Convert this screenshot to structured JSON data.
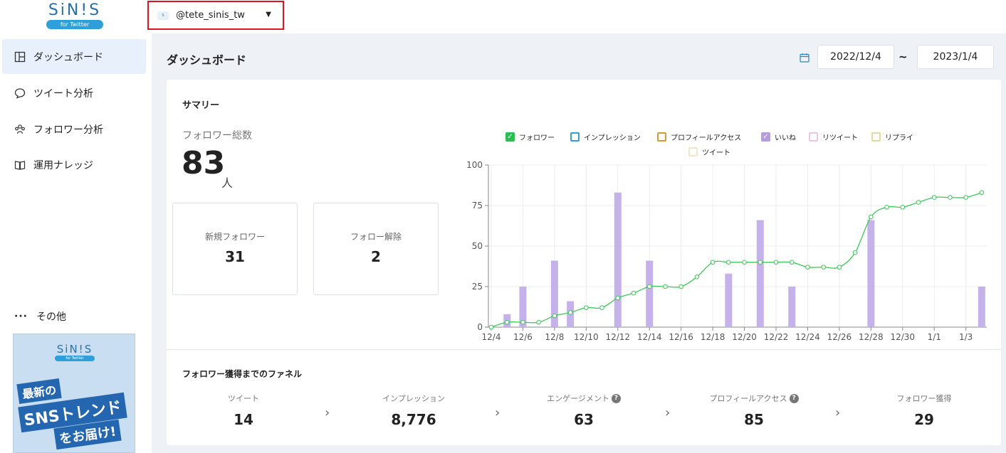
{
  "app": {
    "logo": "SiN!S",
    "logo_badge": "for Twitter"
  },
  "account": {
    "name": "@tete_sinis_tw"
  },
  "sidebar": {
    "items": [
      {
        "label": "ダッシュボード",
        "icon": "dashboard-icon",
        "active": true
      },
      {
        "label": "ツイート分析",
        "icon": "speech-bubble-icon",
        "active": false
      },
      {
        "label": "フォロワー分析",
        "icon": "users-icon",
        "active": false
      },
      {
        "label": "運用ナレッジ",
        "icon": "book-icon",
        "active": false
      }
    ],
    "other": "その他",
    "banner": {
      "logo": "SiN!S",
      "badge": "for Twitter",
      "line1": "最新の",
      "line2": "SNSトレンド",
      "line3": "をお届け!"
    }
  },
  "header": {
    "title": "ダッシュボード",
    "date_from": "2022/12/4",
    "separator": "~",
    "date_to": "2023/1/4"
  },
  "summary": {
    "title": "サマリー",
    "total_label": "フォロワー総数",
    "total_value": "83",
    "total_unit": "人",
    "new_followers_label": "新規フォロワー",
    "new_followers_value": "31",
    "unfollow_label": "フォロー解除",
    "unfollow_value": "2"
  },
  "legend": [
    {
      "label": "フォロワー",
      "color": "#2ebd4e",
      "checked": true
    },
    {
      "label": "インプレッション",
      "color": "#36a2c8",
      "checked": false
    },
    {
      "label": "プロフィールアクセス",
      "color": "#d19a3a",
      "checked": false
    },
    {
      "label": "いいね",
      "color": "#b79ce0",
      "checked": true
    },
    {
      "label": "リツイート",
      "color": "#f0c6d8",
      "checked": false
    },
    {
      "label": "リプライ",
      "color": "#dfdba0",
      "checked": false
    },
    {
      "label": "ツイート",
      "color": "#f3e6c8",
      "checked": false
    }
  ],
  "chart_data": {
    "type": "bar",
    "x": [
      "12/4",
      "12/5",
      "12/6",
      "12/7",
      "12/8",
      "12/9",
      "12/10",
      "12/11",
      "12/12",
      "12/13",
      "12/14",
      "12/15",
      "12/16",
      "12/17",
      "12/18",
      "12/19",
      "12/20",
      "12/21",
      "12/22",
      "12/23",
      "12/24",
      "12/25",
      "12/26",
      "12/27",
      "12/28",
      "12/29",
      "12/30",
      "12/31",
      "1/1",
      "1/2",
      "1/3",
      "1/4"
    ],
    "tick_labels": [
      "12/4",
      "12/6",
      "12/8",
      "12/10",
      "12/12",
      "12/14",
      "12/16",
      "12/18",
      "12/20",
      "12/22",
      "12/24",
      "12/26",
      "12/28",
      "12/30",
      "1/1",
      "1/3"
    ],
    "y_ticks": [
      "0",
      "25",
      "50",
      "75",
      "100"
    ],
    "ylim": [
      0,
      100
    ],
    "series": [
      {
        "name": "いいね",
        "type": "bar",
        "color": "#c6b2ea",
        "values": [
          null,
          8,
          25,
          null,
          41,
          16,
          null,
          null,
          83,
          null,
          41,
          null,
          null,
          null,
          null,
          33,
          null,
          66,
          null,
          25,
          null,
          null,
          null,
          null,
          66,
          null,
          null,
          null,
          null,
          null,
          null,
          25
        ]
      },
      {
        "name": "フォロワー",
        "type": "line",
        "color": "#3cc85a",
        "values": [
          0,
          3,
          3,
          3,
          7,
          9,
          12,
          12,
          18,
          21,
          25,
          25,
          25,
          31,
          40,
          40,
          40,
          40,
          40,
          40,
          37,
          37,
          37,
          46,
          68,
          74,
          74,
          77,
          80,
          80,
          80,
          83
        ]
      }
    ]
  },
  "funnel": {
    "title": "フォロワー獲得までのファネル",
    "steps": [
      {
        "label": "ツイート",
        "value": "14",
        "help": false
      },
      {
        "label": "インプレッション",
        "value": "8,776",
        "help": false
      },
      {
        "label": "エンゲージメント",
        "value": "63",
        "help": true
      },
      {
        "label": "プロフィールアクセス",
        "value": "85",
        "help": true
      },
      {
        "label": "フォロワー獲得",
        "value": "29",
        "help": false
      }
    ]
  }
}
